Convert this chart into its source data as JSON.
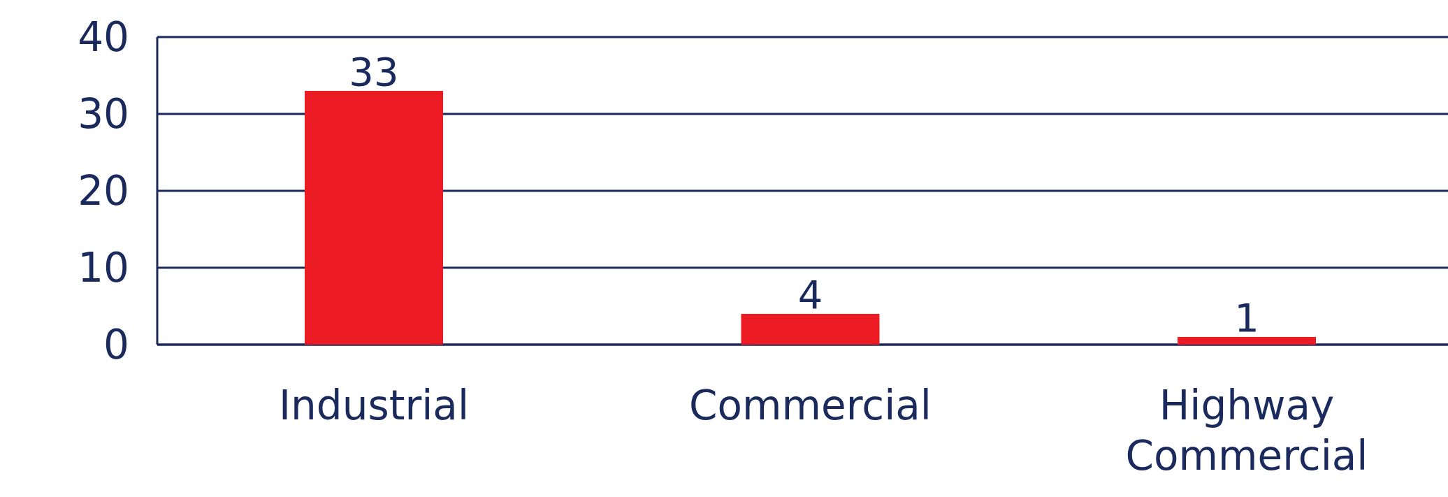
{
  "chart_data": {
    "type": "bar",
    "categories": [
      "Industrial",
      "Commercial",
      "Highway Commercial"
    ],
    "values": [
      33,
      4,
      1
    ],
    "color": "#ed1c24",
    "ylim": [
      0,
      40
    ],
    "yticks": [
      0,
      10,
      20,
      30,
      40
    ],
    "grid": "y",
    "data_labels": true
  }
}
